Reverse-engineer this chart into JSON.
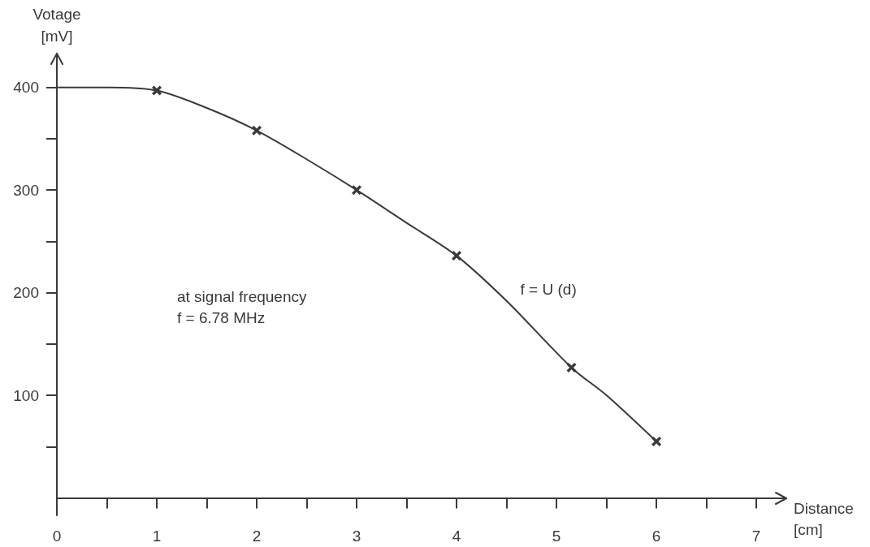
{
  "chart_data": {
    "type": "line",
    "xlabel": "Distance [cm]",
    "ylabel": "Votage [mV]",
    "annotations": [
      "at signal frequency",
      "f = 6.78 MHz"
    ],
    "series": [
      {
        "name": "f = U (d)",
        "marker": "none",
        "color": "#3a3a3a",
        "x": [
          0,
          0.5,
          1,
          1.5,
          2,
          2.5,
          3,
          3.5,
          4,
          4.5,
          5.15,
          5.5,
          6
        ],
        "values": [
          400,
          400,
          397,
          380,
          358,
          330,
          300,
          268,
          236,
          192,
          127,
          100,
          55
        ]
      },
      {
        "type": "scatter",
        "marker": "cross",
        "color": "#3a3a3a",
        "x": [
          1,
          2,
          3,
          4,
          5.15,
          6
        ],
        "values": [
          397,
          358,
          300,
          236,
          127,
          55
        ]
      }
    ],
    "xlim": [
      0,
      7.3
    ],
    "ylim": [
      -17,
      433
    ],
    "xticks": [
      0,
      {
        "value": 0.5,
        "label": null
      },
      1,
      {
        "value": 1.5,
        "label": null
      },
      2,
      {
        "value": 2.5,
        "label": null
      },
      3,
      {
        "value": 3.5,
        "label": null
      },
      4,
      {
        "value": 4.5,
        "label": null
      },
      5,
      {
        "value": 5.5,
        "label": null
      },
      6,
      {
        "value": 6.5,
        "label": null
      },
      7
    ],
    "yticks": [
      {
        "value": 50,
        "label": null
      },
      100,
      {
        "value": 150,
        "label": null
      },
      200,
      {
        "value": 250,
        "label": null
      },
      300,
      {
        "value": 350,
        "label": null
      },
      400
    ],
    "grid": false,
    "legend": false,
    "line_style": "solid"
  }
}
